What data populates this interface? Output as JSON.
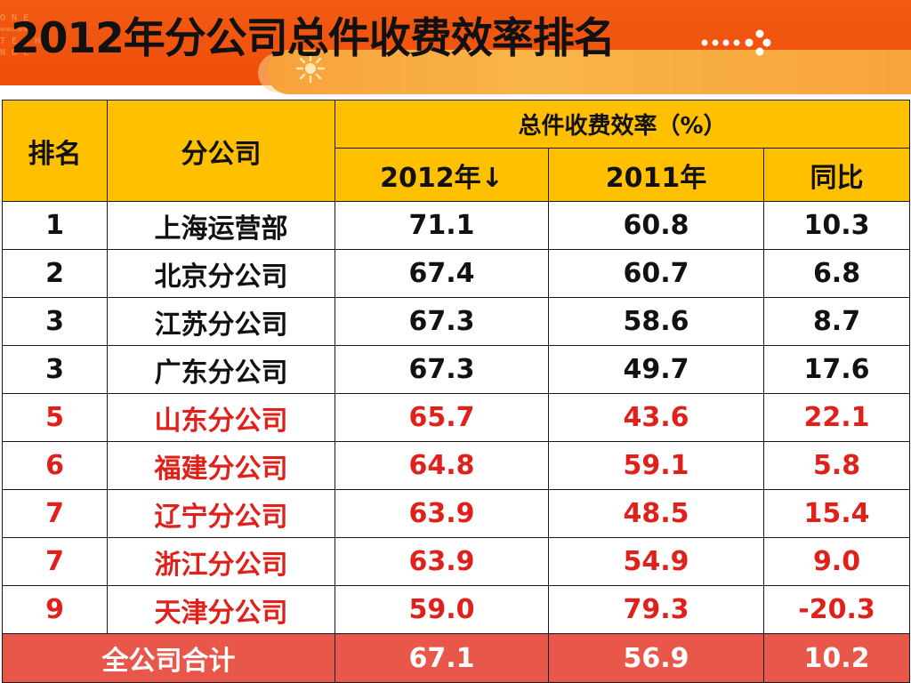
{
  "title": "2012年分公司总件收费效率排名",
  "header": {
    "rank": "排名",
    "branch": "分公司",
    "group": "总件收费效率（%）",
    "col2012": "2012年↓",
    "col2011": "2011年",
    "yoy": "同比"
  },
  "rows": [
    {
      "rank": "1",
      "branch": "上海运营部",
      "v2012": "71.1",
      "v2011": "60.8",
      "yoy": "10.3",
      "highlight": false
    },
    {
      "rank": "2",
      "branch": "北京分公司",
      "v2012": "67.4",
      "v2011": "60.7",
      "yoy": "6.8",
      "highlight": false
    },
    {
      "rank": "3",
      "branch": "江苏分公司",
      "v2012": "67.3",
      "v2011": "58.6",
      "yoy": "8.7",
      "highlight": false
    },
    {
      "rank": "3",
      "branch": "广东分公司",
      "v2012": "67.3",
      "v2011": "49.7",
      "yoy": "17.6",
      "highlight": false
    },
    {
      "rank": "5",
      "branch": "山东分公司",
      "v2012": "65.7",
      "v2011": "43.6",
      "yoy": "22.1",
      "highlight": true
    },
    {
      "rank": "6",
      "branch": "福建分公司",
      "v2012": "64.8",
      "v2011": "59.1",
      "yoy": "5.8",
      "highlight": true
    },
    {
      "rank": "7",
      "branch": "辽宁分公司",
      "v2012": "63.9",
      "v2011": "48.5",
      "yoy": "15.4",
      "highlight": true
    },
    {
      "rank": "7",
      "branch": "浙江分公司",
      "v2012": "63.9",
      "v2011": "54.9",
      "yoy": "9.0",
      "highlight": true
    },
    {
      "rank": "9",
      "branch": "天津分公司",
      "v2012": "59.0",
      "v2011": "79.3",
      "yoy": "-20.3",
      "highlight": true
    }
  ],
  "total": {
    "label": "全公司合计",
    "v2012": "67.1",
    "v2011": "56.9",
    "yoy": "10.2"
  },
  "logo_text": "ONE TECHNOL",
  "colors": {
    "banner": "#ee4f0b",
    "header_fill": "#ffc000",
    "highlight_text": "#e0201b",
    "total_fill": "#e8574a"
  },
  "icons": {
    "sun": "sun-icon",
    "dots": "dots-decoration-icon"
  }
}
